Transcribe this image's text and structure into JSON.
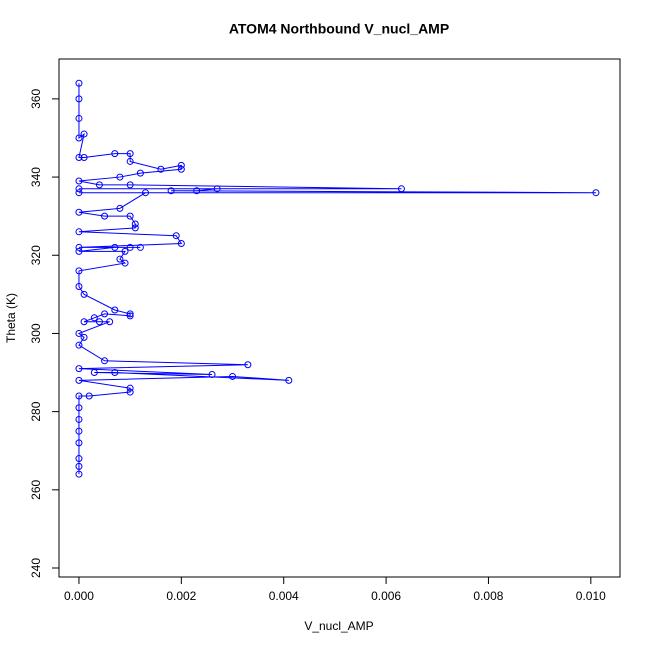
{
  "chart_data": {
    "type": "line",
    "title": "ATOM4 Northbound V_nucl_AMP",
    "x_label": "V_nucl_AMP",
    "y_label": "Theta (K)",
    "color": "#0000ff",
    "markers": true,
    "x": [
      0,
      0,
      0,
      0,
      0.0001,
      0,
      0.0001,
      0.0007,
      0.001,
      0.001,
      0.0016,
      0.002,
      0.002,
      0.0012,
      0.0008,
      0,
      0.0004,
      0.001,
      0.0063,
      0,
      0.0027,
      0.0023,
      0.0018,
      0.0101,
      0,
      0.0013,
      0.0008,
      0,
      0.0005,
      0.001,
      0.0011,
      0.0011,
      0,
      0.0019,
      0.002,
      0,
      0.0012,
      0.001,
      0.0007,
      0,
      0.0009,
      0.0008,
      0.0009,
      0,
      0,
      0.0001,
      0.0007,
      0.001,
      0.001,
      0.0005,
      0.0003,
      0.0001,
      0.0004,
      0.0006,
      0,
      0.0001,
      0,
      0.0005,
      0.0033,
      0,
      0.0026,
      0.0003,
      0.0007,
      0.0041,
      0.003,
      0,
      0.001,
      0.001,
      0.0002,
      0,
      0,
      0,
      0,
      0,
      0,
      0,
      0
    ],
    "values": [
      364,
      360,
      355,
      350,
      351,
      345,
      345,
      346,
      346,
      344,
      342,
      343,
      342,
      341,
      340,
      339,
      338,
      338,
      337,
      337,
      337,
      336.5,
      336.5,
      336,
      336,
      336,
      332,
      331,
      330,
      330,
      328,
      327,
      326,
      325,
      323,
      322,
      322,
      322,
      322,
      321,
      321,
      319,
      318,
      316,
      312,
      310,
      306,
      305,
      304.5,
      305,
      304,
      303,
      303,
      303,
      300,
      299,
      297,
      293,
      292,
      291,
      289.5,
      290,
      290,
      288,
      289,
      288,
      286,
      285,
      284,
      284,
      281,
      278,
      275,
      272,
      268,
      266,
      264
    ],
    "xlim": [
      -0.00039,
      0.01057
    ],
    "ylim": [
      237.7,
      370.2
    ],
    "xticks": [
      {
        "value": 0,
        "label": "0.000"
      },
      {
        "value": 0.002,
        "label": "0.002"
      },
      {
        "value": 0.004,
        "label": "0.004"
      },
      {
        "value": 0.006,
        "label": "0.006"
      },
      {
        "value": 0.008,
        "label": "0.008"
      },
      {
        "value": 0.01,
        "label": "0.010"
      }
    ],
    "yticks": [
      240,
      260,
      280,
      300,
      320,
      340,
      360
    ]
  }
}
